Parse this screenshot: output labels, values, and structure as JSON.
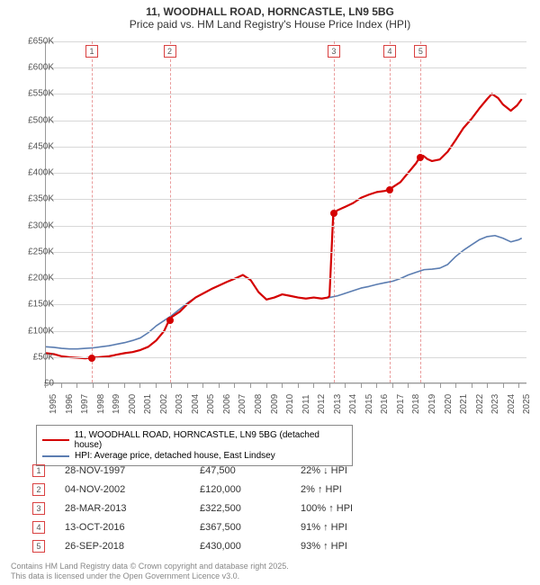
{
  "title_line1": "11, WOODHALL ROAD, HORNCASTLE, LN9 5BG",
  "title_line2": "Price paid vs. HM Land Registry's House Price Index (HPI)",
  "chart": {
    "type": "line",
    "x_range": [
      1995,
      2025.5
    ],
    "y_range": [
      0,
      650000
    ],
    "y_ticks": [
      0,
      50000,
      100000,
      150000,
      200000,
      250000,
      300000,
      350000,
      400000,
      450000,
      500000,
      550000,
      600000,
      650000
    ],
    "y_tick_labels": [
      "£0",
      "£50K",
      "£100K",
      "£150K",
      "£200K",
      "£250K",
      "£300K",
      "£350K",
      "£400K",
      "£450K",
      "£500K",
      "£550K",
      "£600K",
      "£650K"
    ],
    "x_ticks": [
      1995,
      1996,
      1997,
      1998,
      1999,
      2000,
      2001,
      2002,
      2003,
      2004,
      2005,
      2006,
      2007,
      2008,
      2009,
      2010,
      2011,
      2012,
      2013,
      2014,
      2015,
      2016,
      2017,
      2018,
      2019,
      2020,
      2021,
      2022,
      2023,
      2024,
      2025
    ],
    "colors": {
      "red_line": "#d40000",
      "blue_line": "#5b7db1",
      "marker_border": "#d94040",
      "grid": "#d8d8d8",
      "background": "#ffffff"
    },
    "line_width_red": 2.2,
    "line_width_blue": 1.6,
    "series_red": {
      "name": "11, WOODHALL ROAD, HORNCASTLE, LN9 5BG (detached house)",
      "points": [
        [
          1995.0,
          56000
        ],
        [
          1995.5,
          54000
        ],
        [
          1996.0,
          50000
        ],
        [
          1996.5,
          48000
        ],
        [
          1997.0,
          47000
        ],
        [
          1997.5,
          46000
        ],
        [
          1997.91,
          47500
        ],
        [
          1998.3,
          48000
        ],
        [
          1999.0,
          50000
        ],
        [
          1999.5,
          53000
        ],
        [
          2000.0,
          56000
        ],
        [
          2000.5,
          58000
        ],
        [
          2001.0,
          62000
        ],
        [
          2001.5,
          68000
        ],
        [
          2002.0,
          80000
        ],
        [
          2002.5,
          98000
        ],
        [
          2002.84,
          120000
        ],
        [
          2003.0,
          125000
        ],
        [
          2003.5,
          135000
        ],
        [
          2004.0,
          150000
        ],
        [
          2004.5,
          162000
        ],
        [
          2005.0,
          170000
        ],
        [
          2005.5,
          178000
        ],
        [
          2006.0,
          185000
        ],
        [
          2006.5,
          192000
        ],
        [
          2007.0,
          198000
        ],
        [
          2007.5,
          205000
        ],
        [
          2008.0,
          195000
        ],
        [
          2008.5,
          172000
        ],
        [
          2009.0,
          158000
        ],
        [
          2009.5,
          162000
        ],
        [
          2010.0,
          168000
        ],
        [
          2010.5,
          165000
        ],
        [
          2011.0,
          162000
        ],
        [
          2011.5,
          160000
        ],
        [
          2012.0,
          162000
        ],
        [
          2012.5,
          160000
        ],
        [
          2012.9,
          162000
        ],
        [
          2013.0,
          165000
        ],
        [
          2013.24,
          322500
        ],
        [
          2013.5,
          328000
        ],
        [
          2014.0,
          335000
        ],
        [
          2014.5,
          342000
        ],
        [
          2015.0,
          352000
        ],
        [
          2015.5,
          358000
        ],
        [
          2016.0,
          363000
        ],
        [
          2016.5,
          365000
        ],
        [
          2016.78,
          367500
        ],
        [
          2017.0,
          372000
        ],
        [
          2017.5,
          382000
        ],
        [
          2018.0,
          400000
        ],
        [
          2018.5,
          418000
        ],
        [
          2018.74,
          430000
        ],
        [
          2018.95,
          432000
        ],
        [
          2019.2,
          426000
        ],
        [
          2019.5,
          422000
        ],
        [
          2020.0,
          425000
        ],
        [
          2020.5,
          440000
        ],
        [
          2021.0,
          462000
        ],
        [
          2021.5,
          485000
        ],
        [
          2022.0,
          502000
        ],
        [
          2022.5,
          522000
        ],
        [
          2023.0,
          540000
        ],
        [
          2023.3,
          550000
        ],
        [
          2023.7,
          542000
        ],
        [
          2024.0,
          530000
        ],
        [
          2024.5,
          518000
        ],
        [
          2024.9,
          528000
        ],
        [
          2025.2,
          540000
        ]
      ]
    },
    "series_blue": {
      "name": "HPI: Average price, detached house, East Lindsey",
      "points": [
        [
          1995.0,
          68000
        ],
        [
          1995.5,
          67000
        ],
        [
          1996.0,
          65000
        ],
        [
          1996.5,
          64000
        ],
        [
          1997.0,
          64000
        ],
        [
          1997.5,
          65000
        ],
        [
          1998.0,
          66000
        ],
        [
          1998.5,
          68000
        ],
        [
          1999.0,
          70000
        ],
        [
          1999.5,
          73000
        ],
        [
          2000.0,
          76000
        ],
        [
          2000.5,
          80000
        ],
        [
          2001.0,
          85000
        ],
        [
          2001.5,
          95000
        ],
        [
          2002.0,
          108000
        ],
        [
          2002.5,
          118000
        ],
        [
          2003.0,
          128000
        ],
        [
          2003.5,
          140000
        ],
        [
          2004.0,
          152000
        ],
        [
          2004.5,
          162000
        ],
        [
          2005.0,
          170000
        ],
        [
          2005.5,
          178000
        ],
        [
          2006.0,
          185000
        ],
        [
          2006.5,
          192000
        ],
        [
          2007.0,
          198000
        ],
        [
          2007.5,
          205000
        ],
        [
          2008.0,
          195000
        ],
        [
          2008.5,
          172000
        ],
        [
          2009.0,
          158000
        ],
        [
          2009.5,
          162000
        ],
        [
          2010.0,
          168000
        ],
        [
          2010.5,
          165000
        ],
        [
          2011.0,
          162000
        ],
        [
          2011.5,
          160000
        ],
        [
          2012.0,
          162000
        ],
        [
          2012.5,
          160000
        ],
        [
          2013.0,
          162000
        ],
        [
          2013.5,
          165000
        ],
        [
          2014.0,
          170000
        ],
        [
          2014.5,
          175000
        ],
        [
          2015.0,
          180000
        ],
        [
          2015.5,
          183000
        ],
        [
          2016.0,
          187000
        ],
        [
          2016.5,
          190000
        ],
        [
          2017.0,
          193000
        ],
        [
          2017.5,
          198000
        ],
        [
          2018.0,
          205000
        ],
        [
          2018.5,
          210000
        ],
        [
          2019.0,
          215000
        ],
        [
          2019.5,
          216000
        ],
        [
          2020.0,
          218000
        ],
        [
          2020.5,
          225000
        ],
        [
          2021.0,
          240000
        ],
        [
          2021.5,
          252000
        ],
        [
          2022.0,
          262000
        ],
        [
          2022.5,
          272000
        ],
        [
          2023.0,
          278000
        ],
        [
          2023.5,
          280000
        ],
        [
          2024.0,
          275000
        ],
        [
          2024.5,
          268000
        ],
        [
          2025.0,
          272000
        ],
        [
          2025.2,
          275000
        ]
      ]
    },
    "sale_markers": [
      {
        "n": "1",
        "x": 1997.91,
        "y": 47500
      },
      {
        "n": "2",
        "x": 2002.84,
        "y": 120000
      },
      {
        "n": "3",
        "x": 2013.24,
        "y": 322500
      },
      {
        "n": "4",
        "x": 2016.78,
        "y": 367500
      },
      {
        "n": "5",
        "x": 2018.74,
        "y": 430000
      }
    ]
  },
  "legend": {
    "items": [
      {
        "color": "#d40000",
        "label": "11, WOODHALL ROAD, HORNCASTLE, LN9 5BG (detached house)"
      },
      {
        "color": "#5b7db1",
        "label": "HPI: Average price, detached house, East Lindsey"
      }
    ]
  },
  "table": {
    "rows": [
      {
        "n": "1",
        "date": "28-NOV-1997",
        "price": "£47,500",
        "pct": "22% ↓ HPI"
      },
      {
        "n": "2",
        "date": "04-NOV-2002",
        "price": "£120,000",
        "pct": "2% ↑ HPI"
      },
      {
        "n": "3",
        "date": "28-MAR-2013",
        "price": "£322,500",
        "pct": "100% ↑ HPI"
      },
      {
        "n": "4",
        "date": "13-OCT-2016",
        "price": "£367,500",
        "pct": "91% ↑ HPI"
      },
      {
        "n": "5",
        "date": "26-SEP-2018",
        "price": "£430,000",
        "pct": "93% ↑ HPI"
      }
    ]
  },
  "footer_line1": "Contains HM Land Registry data © Crown copyright and database right 2025.",
  "footer_line2": "This data is licensed under the Open Government Licence v3.0."
}
